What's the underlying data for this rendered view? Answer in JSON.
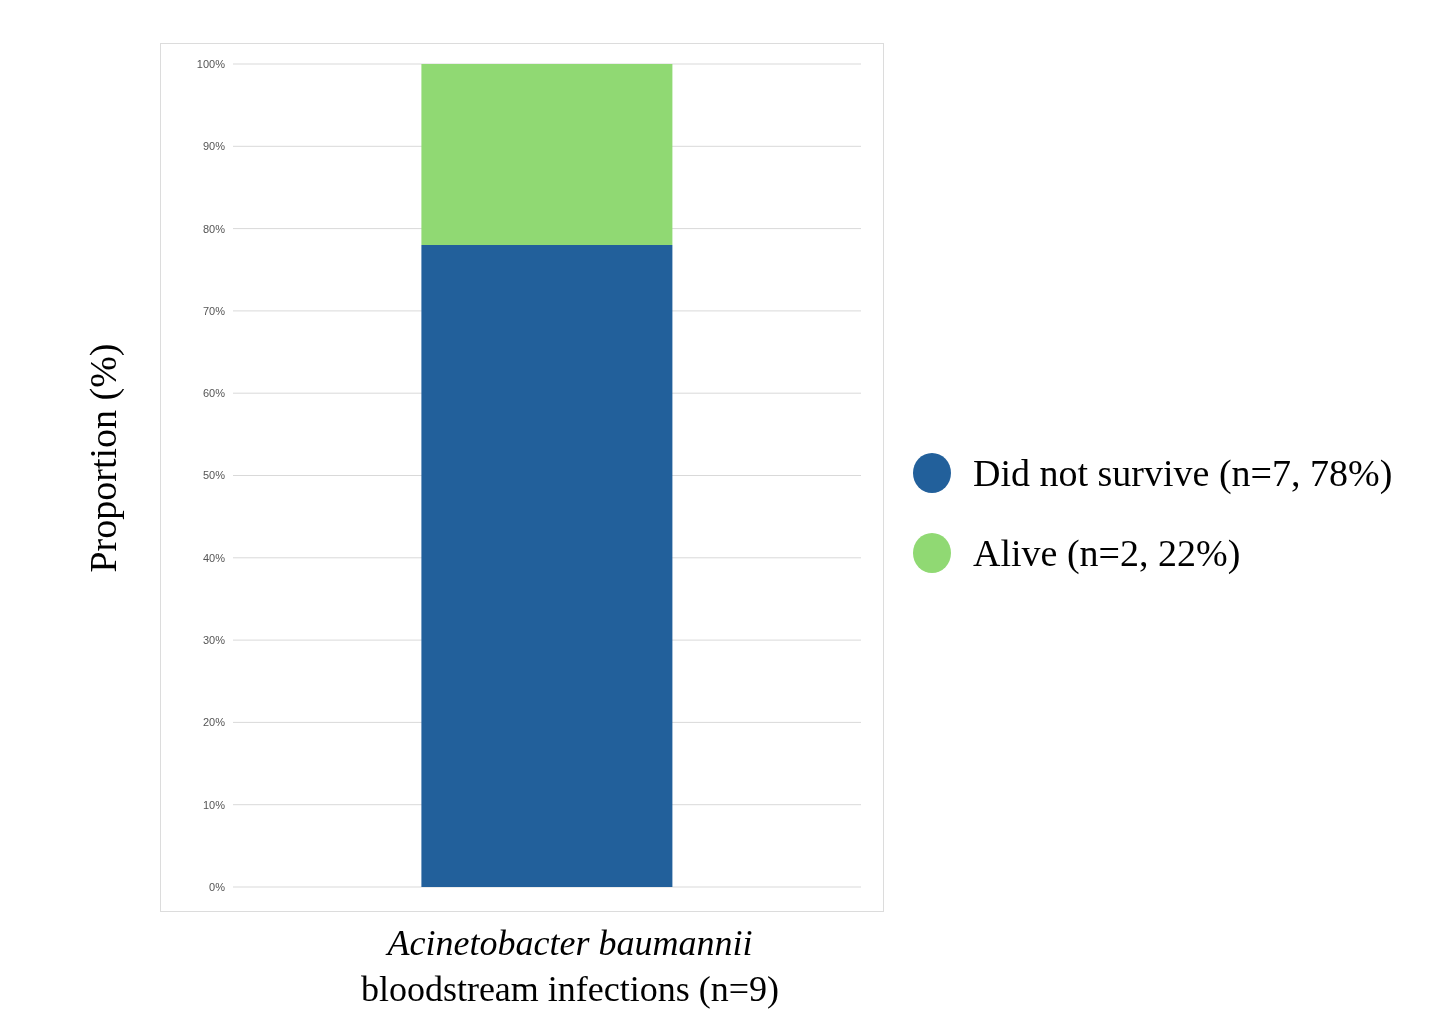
{
  "chart_data": {
    "type": "bar",
    "stacked": true,
    "categories": [
      null
    ],
    "series": [
      {
        "name": "Did not survive (n=7, 78%)",
        "color": "#22609b",
        "values": [
          78
        ]
      },
      {
        "name": "Alive (n=2, 22%)",
        "color": "#90d973",
        "values": [
          22
        ]
      }
    ],
    "ylabel": "Proportion  (%)",
    "xlabel": "Acinetobacter baumannii\nbloodstream infections (n=9)",
    "ylim": [
      0,
      100
    ],
    "yticks": [
      {
        "value": 0,
        "label": "0%"
      },
      {
        "value": 10,
        "label": "10%"
      },
      {
        "value": 20,
        "label": "20%"
      },
      {
        "value": 30,
        "label": "30%"
      },
      {
        "value": 40,
        "label": "40%"
      },
      {
        "value": 50,
        "label": "50%"
      },
      {
        "value": 60,
        "label": "60%"
      },
      {
        "value": 70,
        "label": "70%"
      },
      {
        "value": 80,
        "label": "80%"
      },
      {
        "value": 90,
        "label": "90%"
      },
      {
        "value": 100,
        "label": "100%"
      }
    ],
    "grid": "y",
    "legend": "right"
  }
}
